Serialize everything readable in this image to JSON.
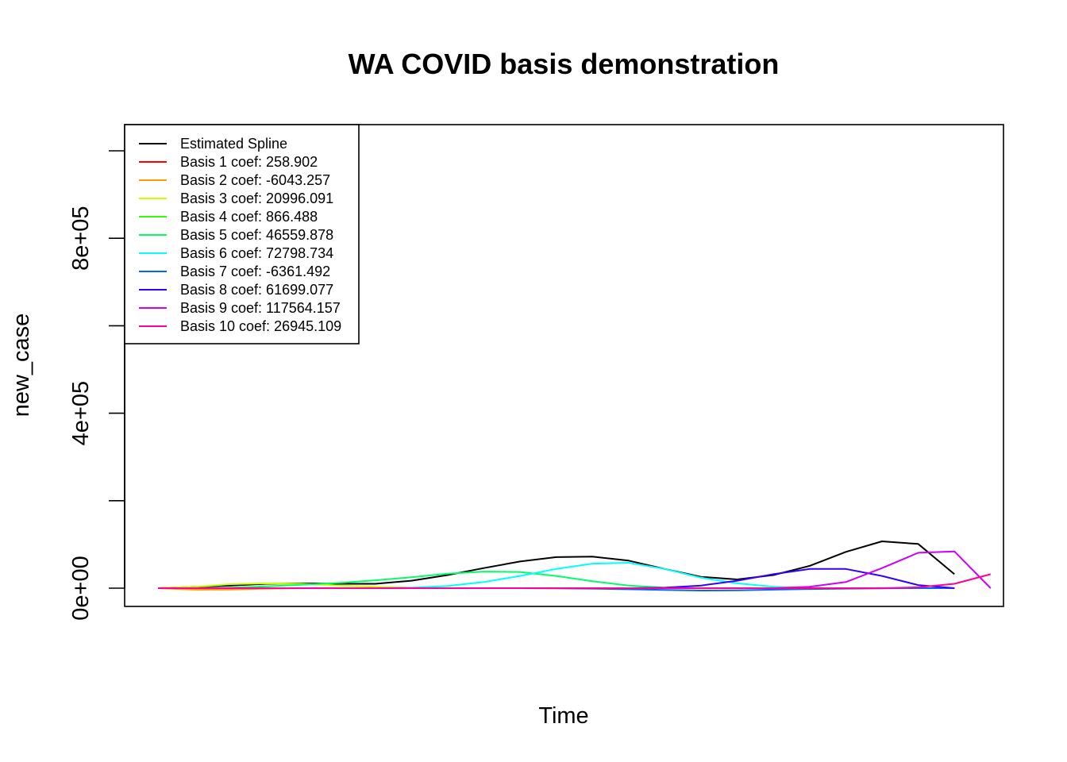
{
  "chart_data": {
    "type": "line",
    "title": "WA COVID basis demonstration",
    "xlabel": "Time",
    "ylabel": "new_case",
    "ylim": [
      -50000,
      1000000
    ],
    "y_ticks": [
      0,
      200000,
      400000,
      600000,
      800000,
      1000000
    ],
    "y_tick_labels": [
      "0e+00",
      "",
      "4e+05",
      "",
      "8e+05",
      ""
    ],
    "x_points": 24,
    "grid": false,
    "legend_position": "top-left",
    "series": [
      {
        "name": "Estimated Spline",
        "color": "#000000",
        "values": [
          0,
          3000,
          6000,
          10000,
          11000,
          10000,
          10000,
          17000,
          30000,
          46000,
          61000,
          71000,
          72000,
          63000,
          44000,
          26000,
          20000,
          30000,
          51000,
          83000,
          107000,
          101000,
          32000,
          null
        ]
      },
      {
        "name": "Basis 1 coef: 258.902",
        "color": "#FF0000",
        "values": [
          0,
          0,
          0,
          0,
          0,
          0,
          0,
          0,
          0,
          0,
          0,
          0,
          0,
          0,
          0,
          0,
          0,
          0,
          0,
          0,
          0,
          0,
          0,
          null
        ]
      },
      {
        "name": "Basis 2 coef: -6043.257",
        "color": "#FF9900",
        "values": [
          0,
          -3500,
          -3000,
          -1000,
          0,
          0,
          0,
          0,
          0,
          0,
          0,
          0,
          0,
          0,
          0,
          0,
          0,
          0,
          0,
          0,
          0,
          0,
          0,
          null
        ]
      },
      {
        "name": "Basis 3 coef: 20996.091",
        "color": "#CCFF00",
        "values": [
          0,
          3000,
          9000,
          11000,
          10000,
          6000,
          3000,
          1000,
          0,
          0,
          0,
          0,
          0,
          0,
          0,
          0,
          0,
          0,
          0,
          0,
          0,
          0,
          0,
          null
        ]
      },
      {
        "name": "Basis 4 coef: 866.488",
        "color": "#33FF00",
        "values": [
          0,
          0,
          0,
          0,
          0,
          0,
          0,
          0,
          0,
          0,
          0,
          0,
          0,
          0,
          0,
          0,
          0,
          0,
          0,
          0,
          0,
          0,
          0,
          null
        ]
      },
      {
        "name": "Basis 5 coef: 46559.878",
        "color": "#00FF66",
        "values": [
          0,
          0,
          1000,
          4000,
          8000,
          12000,
          18000,
          25000,
          33000,
          38000,
          37000,
          28000,
          16000,
          6000,
          1000,
          0,
          0,
          0,
          0,
          0,
          0,
          0,
          0,
          null
        ]
      },
      {
        "name": "Basis 6 coef: 72798.734",
        "color": "#00FFFF",
        "values": [
          0,
          0,
          0,
          0,
          0,
          0,
          0,
          1000,
          5000,
          14000,
          28000,
          44000,
          56000,
          58000,
          44000,
          24000,
          11000,
          3000,
          0,
          0,
          0,
          0,
          0,
          null
        ]
      },
      {
        "name": "Basis 7 coef: -6361.492",
        "color": "#0066FF",
        "values": [
          0,
          0,
          0,
          0,
          0,
          0,
          0,
          0,
          0,
          0,
          0,
          -500,
          -1000,
          -2500,
          -4000,
          -5500,
          -5000,
          -3500,
          -2000,
          -1000,
          -300,
          0,
          0,
          null
        ]
      },
      {
        "name": "Basis 8 coef: 61699.077",
        "color": "#3300FF",
        "values": [
          0,
          0,
          0,
          0,
          0,
          0,
          0,
          0,
          0,
          0,
          0,
          0,
          0,
          0,
          1000,
          6000,
          17000,
          32000,
          44000,
          44000,
          28000,
          7000,
          0,
          null
        ]
      },
      {
        "name": "Basis 9 coef: 117564.157",
        "color": "#CC00FF",
        "values": [
          0,
          0,
          0,
          0,
          0,
          0,
          0,
          0,
          0,
          0,
          0,
          0,
          0,
          0,
          0,
          0,
          0,
          0,
          3000,
          14000,
          46000,
          81000,
          84000,
          0
        ]
      },
      {
        "name": "Basis 10 coef: 26945.109",
        "color": "#FF0099",
        "values": [
          0,
          0,
          0,
          0,
          0,
          0,
          0,
          0,
          0,
          0,
          0,
          0,
          0,
          0,
          0,
          0,
          0,
          0,
          0,
          0,
          0,
          2000,
          10000,
          32000
        ]
      }
    ]
  }
}
